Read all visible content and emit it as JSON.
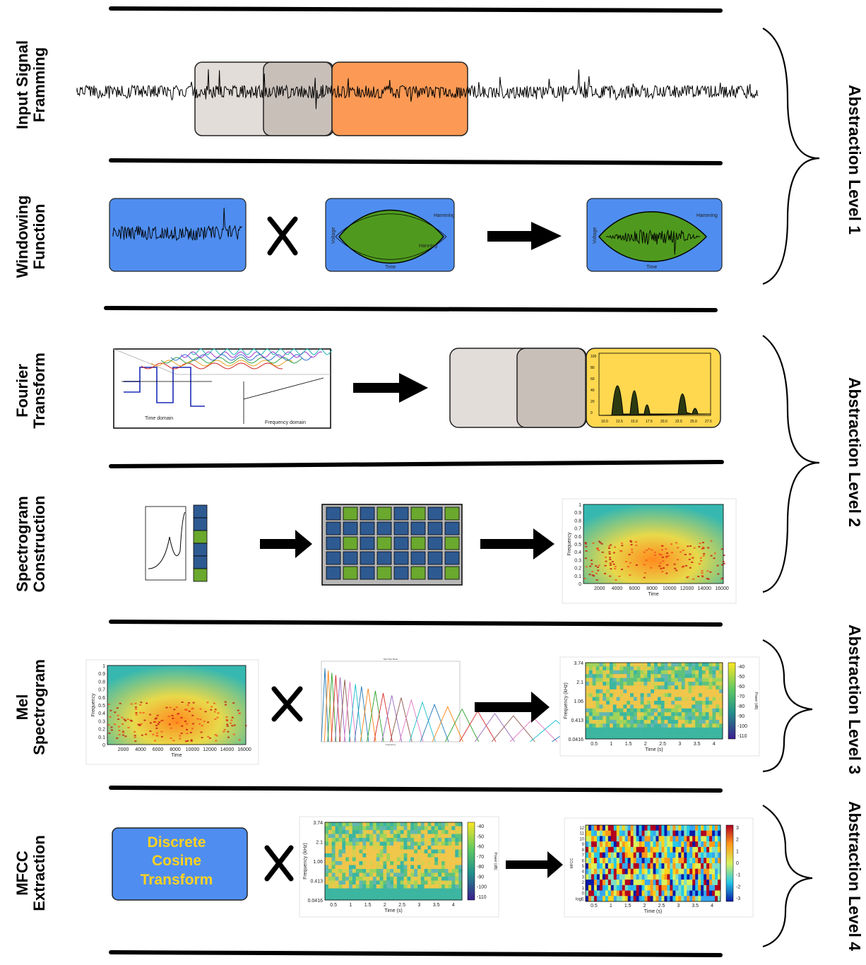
{
  "stages": [
    {
      "line1": "Input Signal",
      "line2": "Framming"
    },
    {
      "line1": "Windowing",
      "line2": "Function"
    },
    {
      "line1": "Fourier",
      "line2": "Transform"
    },
    {
      "line1": "Spectrogram",
      "line2": "Construction"
    },
    {
      "line1": "Mel",
      "line2": "Spectrogram"
    },
    {
      "line1": "MFCC",
      "line2": "Extraction"
    }
  ],
  "levels": [
    "Abstraction Level 1",
    "Abstraction Level 2",
    "Abstraction Level 3",
    "Abstraction Level 4"
  ],
  "window_plot": {
    "ylabel": "Voltage",
    "xlabel": "Time",
    "legend": "Hamming",
    "legend2": "Hanning"
  },
  "fourier": {
    "time_label": "Time domain",
    "freq_label": "Frequency domain"
  },
  "spectrum_ticks": [
    "10.0",
    "12.5",
    "15.0",
    "17.5",
    "20.0",
    "22.5",
    "25.0",
    "27.5"
  ],
  "spectrum_yticks": [
    "100",
    "80",
    "60",
    "40",
    "20",
    "0"
  ],
  "spectrogram": {
    "ylabel": "Frequency",
    "xlabel": "Time",
    "yticks": [
      "1",
      "0.9",
      "0.8",
      "0.7",
      "0.6",
      "0.5",
      "0.4",
      "0.3",
      "0.2",
      "0.1",
      "0"
    ],
    "xticks": [
      "2000",
      "4000",
      "6000",
      "8000",
      "10000",
      "12000",
      "14000",
      "16000"
    ]
  },
  "mel": {
    "ylabel": "Frequency (kHz)",
    "xlabel": "Time (s)",
    "yticks": [
      "3.74",
      "2.1",
      "1.06",
      "0.413",
      "0.0416"
    ],
    "xticks": [
      "0.5",
      "1",
      "1.5",
      "2",
      "2.5",
      "3",
      "3.5",
      "4"
    ],
    "cbar_label": "Power (dB)",
    "cbar_ticks": [
      "-40",
      "-50",
      "-60",
      "-70",
      "-80",
      "-90",
      "-100",
      "-110"
    ]
  },
  "filterbank": {
    "title": "Mel Filter Bank",
    "xlabel": "Frequency"
  },
  "dct": {
    "line1": "Discrete",
    "line2": "Cosine",
    "line3": "Transform"
  },
  "mfcc": {
    "ylabel": "MFCC",
    "xlabel": "Time (s)",
    "yticks": [
      "12",
      "11",
      "10",
      "9",
      "8",
      "7",
      "6",
      "5",
      "4",
      "3",
      "2",
      "1",
      "0",
      "logE"
    ],
    "xticks": [
      "0.5",
      "1",
      "1.5",
      "2",
      "2.5",
      "3",
      "3.5",
      "4"
    ],
    "cbar_ticks": [
      "3",
      "2",
      "1",
      "0",
      "-1",
      "-2",
      "-3"
    ]
  },
  "colors": {
    "blue_panel": "#4f8ef0",
    "orange_frame": "#fc9a55",
    "gray_frame": "#e2ddd9",
    "dark_frame": "#c8bfb9",
    "yellow_panel": "#ffd84f",
    "green_cell": "#6aa82e",
    "navy_cell": "#2e5a92"
  }
}
